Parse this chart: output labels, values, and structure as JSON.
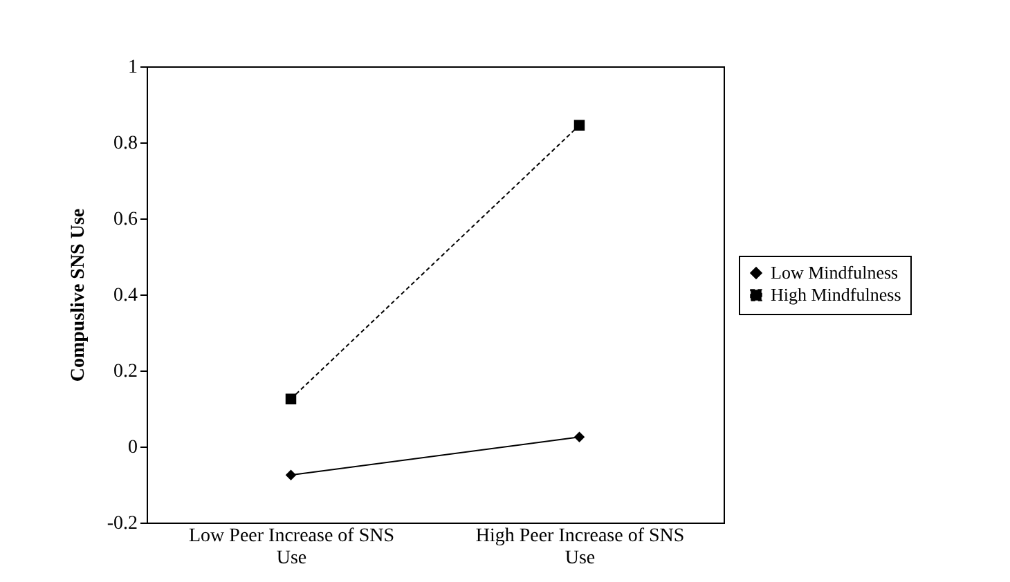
{
  "chart_data": {
    "type": "line",
    "ylabel": "Compuslive  SNS Use",
    "categories": [
      "Low Peer Increase of SNS Use",
      "High Peer Increase of SNS Use"
    ],
    "series": [
      {
        "name": "Low Mindfulness",
        "color": "#000000",
        "values": [
          -0.075,
          0.025
        ],
        "marker": "diamond",
        "line_style": "solid"
      },
      {
        "name": "High Mindfulness",
        "color": "#000000",
        "values": [
          0.125,
          0.845
        ],
        "marker": "square",
        "line_style": "dashed"
      }
    ],
    "ylim": [
      -0.2,
      1
    ],
    "yticks": [
      -0.2,
      0,
      0.2,
      0.4,
      0.6,
      0.8,
      1
    ],
    "grid": false,
    "legend": "right"
  }
}
